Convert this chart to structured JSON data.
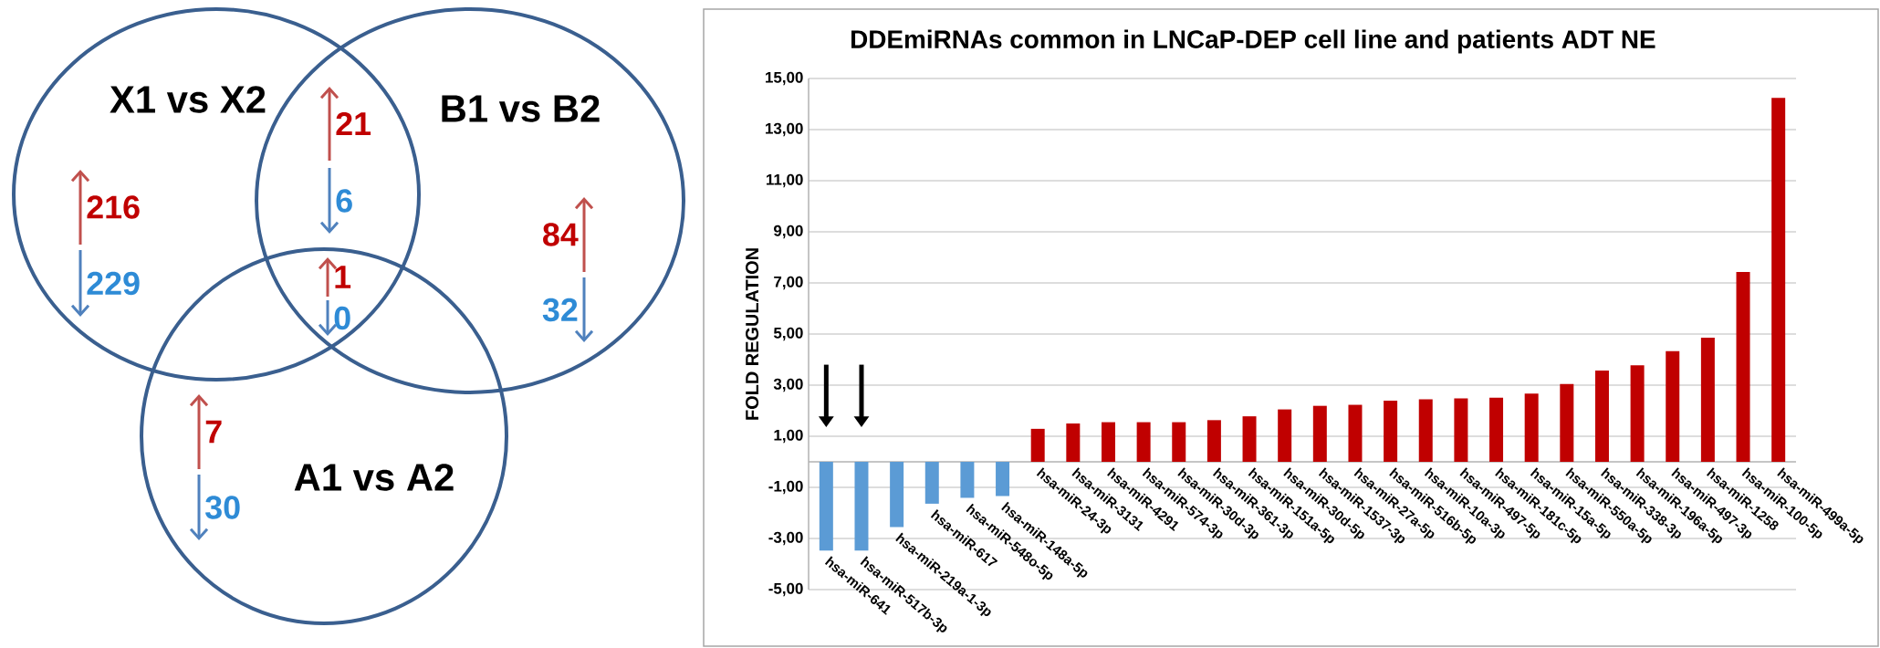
{
  "chart_data": [
    {
      "type": "other",
      "annotations": [
        "X1 vs X2",
        "B1 vs B2",
        "A1 vs A2",
        "216",
        "229",
        "21",
        "6",
        "84",
        "32",
        "1",
        "0",
        "7",
        "30"
      ]
    },
    {
      "type": "bar",
      "title": "DDEmiRNAs common in LNCaP-DEP cell line and patients ADT NE",
      "ylabel": "FOLD REGULATION",
      "categories": [
        "hsa-miR-641",
        "hsa-miR-517b-3p",
        "hsa-miR-219a-1-3p",
        "hsa-miR-617",
        "hsa-miR-548o-5p",
        "hsa-miR-148a-5p",
        "hsa-miR-24-3p",
        "hsa-miR-3131",
        "hsa-miR-4291",
        "hsa-miR-574-3p",
        "hsa-miR-30d-3p",
        "hsa-miR-361-3p",
        "hsa-miR-151a-5p",
        "hsa-miR-30d-5p",
        "hsa-miR-1537-3p",
        "hsa-miR-27a-5p",
        "hsa-miR-516b-5p",
        "hsa-miR-10a-3p",
        "hsa-miR-497-5p",
        "hsa-miR-181c-5p",
        "hsa-miR-15a-5p",
        "hsa-miR-550a-5p",
        "hsa-miR-338-3p",
        "hsa-miR-196a-5p",
        "hsa-miR-497-3p",
        "hsa-miR-1258",
        "hsa-miR-100-5p",
        "hsa-miR-499a-5p"
      ],
      "values": [
        -3.47,
        -3.47,
        -2.55,
        -1.64,
        -1.41,
        -1.34,
        1.29,
        1.5,
        1.55,
        1.55,
        1.55,
        1.63,
        1.78,
        2.05,
        2.19,
        2.23,
        2.39,
        2.45,
        2.48,
        2.51,
        2.67,
        3.04,
        3.57,
        3.78,
        4.33,
        4.86,
        7.43,
        14.24
      ],
      "colors": [
        "#5b9bd5",
        "#5b9bd5",
        "#5b9bd5",
        "#5b9bd5",
        "#5b9bd5",
        "#5b9bd5",
        "#c00000",
        "#c00000",
        "#c00000",
        "#c00000",
        "#c00000",
        "#c00000",
        "#c00000",
        "#c00000",
        "#c00000",
        "#c00000",
        "#c00000",
        "#c00000",
        "#c00000",
        "#c00000",
        "#c00000",
        "#c00000",
        "#c00000",
        "#c00000",
        "#c00000",
        "#c00000",
        "#c00000",
        "#c00000"
      ],
      "ylim": [
        -5,
        15
      ],
      "yticks": [
        {
          "value": -5,
          "label": "-5,00"
        },
        {
          "value": -3,
          "label": "-3,00"
        },
        {
          "value": -1,
          "label": "-1,00"
        },
        {
          "value": 1,
          "label": "1,00"
        },
        {
          "value": 3,
          "label": "3,00"
        },
        {
          "value": 5,
          "label": "5,00"
        },
        {
          "value": 7,
          "label": "7,00"
        },
        {
          "value": 9,
          "label": "9,00"
        },
        {
          "value": 11,
          "label": "11,00"
        },
        {
          "value": 13,
          "label": "13,00"
        },
        {
          "value": 15,
          "label": "15,00"
        }
      ],
      "grid": "y"
    }
  ]
}
